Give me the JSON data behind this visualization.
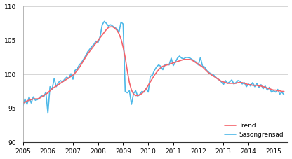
{
  "xlim": [
    2005.0,
    2015.58
  ],
  "ylim": [
    90,
    110
  ],
  "yticks": [
    90,
    95,
    100,
    105,
    110
  ],
  "xticks": [
    2005,
    2006,
    2007,
    2008,
    2009,
    2010,
    2011,
    2012,
    2013,
    2014,
    2015
  ],
  "xtick_labels": [
    "2005",
    "2006",
    "2007",
    "2008",
    "2009",
    "2010",
    "2011",
    "2012",
    "2013",
    "2014",
    "2015"
  ],
  "trend_color": "#f4626a",
  "seasonal_color": "#4db8e8",
  "legend_labels": [
    "Trend",
    "Säsongrensad"
  ],
  "background_color": "#ffffff",
  "grid_color": "#d0d0d0",
  "trend_lw": 1.2,
  "seasonal_lw": 1.2,
  "trend": [
    [
      2005.0,
      95.8
    ],
    [
      2005.083,
      95.9
    ],
    [
      2005.167,
      96.1
    ],
    [
      2005.25,
      96.2
    ],
    [
      2005.333,
      96.3
    ],
    [
      2005.417,
      96.4
    ],
    [
      2005.5,
      96.4
    ],
    [
      2005.583,
      96.4
    ],
    [
      2005.667,
      96.5
    ],
    [
      2005.75,
      96.7
    ],
    [
      2005.833,
      96.9
    ],
    [
      2005.917,
      97.1
    ],
    [
      2006.0,
      97.3
    ],
    [
      2006.083,
      97.6
    ],
    [
      2006.167,
      97.9
    ],
    [
      2006.25,
      98.1
    ],
    [
      2006.333,
      98.3
    ],
    [
      2006.417,
      98.5
    ],
    [
      2006.5,
      98.7
    ],
    [
      2006.583,
      98.9
    ],
    [
      2006.667,
      99.1
    ],
    [
      2006.75,
      99.3
    ],
    [
      2006.833,
      99.5
    ],
    [
      2006.917,
      99.7
    ],
    [
      2007.0,
      99.9
    ],
    [
      2007.083,
      100.2
    ],
    [
      2007.167,
      100.6
    ],
    [
      2007.25,
      101.0
    ],
    [
      2007.333,
      101.5
    ],
    [
      2007.417,
      102.0
    ],
    [
      2007.5,
      102.5
    ],
    [
      2007.583,
      103.0
    ],
    [
      2007.667,
      103.4
    ],
    [
      2007.75,
      103.8
    ],
    [
      2007.833,
      104.2
    ],
    [
      2007.917,
      104.6
    ],
    [
      2008.0,
      105.0
    ],
    [
      2008.083,
      105.4
    ],
    [
      2008.167,
      105.8
    ],
    [
      2008.25,
      106.2
    ],
    [
      2008.333,
      106.6
    ],
    [
      2008.417,
      106.9
    ],
    [
      2008.5,
      107.0
    ],
    [
      2008.583,
      107.0
    ],
    [
      2008.667,
      106.8
    ],
    [
      2008.75,
      106.5
    ],
    [
      2008.833,
      106.0
    ],
    [
      2008.917,
      105.2
    ],
    [
      2009.0,
      104.0
    ],
    [
      2009.083,
      102.5
    ],
    [
      2009.167,
      100.5
    ],
    [
      2009.25,
      98.8
    ],
    [
      2009.333,
      97.7
    ],
    [
      2009.417,
      97.1
    ],
    [
      2009.5,
      96.9
    ],
    [
      2009.583,
      96.9
    ],
    [
      2009.667,
      97.0
    ],
    [
      2009.75,
      97.2
    ],
    [
      2009.833,
      97.5
    ],
    [
      2009.917,
      97.9
    ],
    [
      2010.0,
      98.4
    ],
    [
      2010.083,
      98.9
    ],
    [
      2010.167,
      99.4
    ],
    [
      2010.25,
      99.9
    ],
    [
      2010.333,
      100.3
    ],
    [
      2010.417,
      100.7
    ],
    [
      2010.5,
      101.0
    ],
    [
      2010.583,
      101.2
    ],
    [
      2010.667,
      101.3
    ],
    [
      2010.75,
      101.4
    ],
    [
      2010.833,
      101.5
    ],
    [
      2010.917,
      101.6
    ],
    [
      2011.0,
      101.7
    ],
    [
      2011.083,
      101.8
    ],
    [
      2011.167,
      101.9
    ],
    [
      2011.25,
      102.0
    ],
    [
      2011.333,
      102.1
    ],
    [
      2011.417,
      102.2
    ],
    [
      2011.5,
      102.2
    ],
    [
      2011.583,
      102.2
    ],
    [
      2011.667,
      102.2
    ],
    [
      2011.75,
      102.1
    ],
    [
      2011.833,
      101.9
    ],
    [
      2011.917,
      101.7
    ],
    [
      2012.0,
      101.5
    ],
    [
      2012.083,
      101.3
    ],
    [
      2012.167,
      101.1
    ],
    [
      2012.25,
      100.8
    ],
    [
      2012.333,
      100.5
    ],
    [
      2012.417,
      100.2
    ],
    [
      2012.5,
      100.0
    ],
    [
      2012.583,
      99.8
    ],
    [
      2012.667,
      99.6
    ],
    [
      2012.75,
      99.4
    ],
    [
      2012.833,
      99.2
    ],
    [
      2012.917,
      99.0
    ],
    [
      2013.0,
      98.9
    ],
    [
      2013.083,
      98.8
    ],
    [
      2013.167,
      98.7
    ],
    [
      2013.25,
      98.7
    ],
    [
      2013.333,
      98.7
    ],
    [
      2013.417,
      98.7
    ],
    [
      2013.5,
      98.7
    ],
    [
      2013.583,
      98.8
    ],
    [
      2013.667,
      98.8
    ],
    [
      2013.75,
      98.8
    ],
    [
      2013.833,
      98.7
    ],
    [
      2013.917,
      98.6
    ],
    [
      2014.0,
      98.5
    ],
    [
      2014.083,
      98.5
    ],
    [
      2014.167,
      98.4
    ],
    [
      2014.25,
      98.4
    ],
    [
      2014.333,
      98.4
    ],
    [
      2014.417,
      98.3
    ],
    [
      2014.5,
      98.3
    ],
    [
      2014.583,
      98.2
    ],
    [
      2014.667,
      98.1
    ],
    [
      2014.75,
      98.0
    ],
    [
      2014.833,
      97.9
    ],
    [
      2014.917,
      97.8
    ],
    [
      2015.0,
      97.7
    ],
    [
      2015.083,
      97.7
    ],
    [
      2015.167,
      97.6
    ],
    [
      2015.25,
      97.6
    ],
    [
      2015.333,
      97.5
    ],
    [
      2015.417,
      97.5
    ]
  ],
  "seasonal": [
    [
      2005.0,
      95.3
    ],
    [
      2005.083,
      96.4
    ],
    [
      2005.167,
      95.6
    ],
    [
      2005.25,
      96.7
    ],
    [
      2005.333,
      95.8
    ],
    [
      2005.417,
      96.7
    ],
    [
      2005.5,
      96.2
    ],
    [
      2005.583,
      96.3
    ],
    [
      2005.667,
      96.6
    ],
    [
      2005.75,
      96.9
    ],
    [
      2005.833,
      96.7
    ],
    [
      2005.917,
      97.4
    ],
    [
      2006.0,
      94.3
    ],
    [
      2006.083,
      98.2
    ],
    [
      2006.167,
      97.8
    ],
    [
      2006.25,
      99.4
    ],
    [
      2006.333,
      98.2
    ],
    [
      2006.417,
      98.8
    ],
    [
      2006.5,
      99.1
    ],
    [
      2006.583,
      98.9
    ],
    [
      2006.667,
      99.3
    ],
    [
      2006.75,
      99.6
    ],
    [
      2006.833,
      99.4
    ],
    [
      2006.917,
      100.1
    ],
    [
      2007.0,
      99.3
    ],
    [
      2007.083,
      100.6
    ],
    [
      2007.167,
      100.8
    ],
    [
      2007.25,
      101.4
    ],
    [
      2007.333,
      101.7
    ],
    [
      2007.417,
      102.2
    ],
    [
      2007.5,
      102.7
    ],
    [
      2007.583,
      103.3
    ],
    [
      2007.667,
      103.7
    ],
    [
      2007.75,
      104.1
    ],
    [
      2007.833,
      104.4
    ],
    [
      2007.917,
      104.9
    ],
    [
      2008.0,
      104.7
    ],
    [
      2008.083,
      105.6
    ],
    [
      2008.167,
      107.3
    ],
    [
      2008.25,
      107.8
    ],
    [
      2008.333,
      107.5
    ],
    [
      2008.417,
      107.1
    ],
    [
      2008.5,
      107.3
    ],
    [
      2008.583,
      107.1
    ],
    [
      2008.667,
      106.9
    ],
    [
      2008.75,
      106.7
    ],
    [
      2008.833,
      106.2
    ],
    [
      2008.917,
      107.7
    ],
    [
      2009.0,
      107.4
    ],
    [
      2009.083,
      97.5
    ],
    [
      2009.167,
      97.3
    ],
    [
      2009.25,
      97.6
    ],
    [
      2009.333,
      95.6
    ],
    [
      2009.417,
      97.2
    ],
    [
      2009.5,
      97.6
    ],
    [
      2009.583,
      96.8
    ],
    [
      2009.667,
      97.1
    ],
    [
      2009.75,
      97.5
    ],
    [
      2009.833,
      97.4
    ],
    [
      2009.917,
      97.9
    ],
    [
      2010.0,
      97.4
    ],
    [
      2010.083,
      99.7
    ],
    [
      2010.167,
      99.9
    ],
    [
      2010.25,
      100.6
    ],
    [
      2010.333,
      101.1
    ],
    [
      2010.417,
      101.4
    ],
    [
      2010.5,
      101.2
    ],
    [
      2010.583,
      100.7
    ],
    [
      2010.667,
      101.4
    ],
    [
      2010.75,
      101.5
    ],
    [
      2010.833,
      101.4
    ],
    [
      2010.917,
      102.4
    ],
    [
      2011.0,
      101.3
    ],
    [
      2011.083,
      101.8
    ],
    [
      2011.167,
      102.4
    ],
    [
      2011.25,
      102.7
    ],
    [
      2011.333,
      102.4
    ],
    [
      2011.417,
      102.3
    ],
    [
      2011.5,
      102.5
    ],
    [
      2011.583,
      102.5
    ],
    [
      2011.667,
      102.4
    ],
    [
      2011.75,
      102.2
    ],
    [
      2011.833,
      102.0
    ],
    [
      2011.917,
      101.8
    ],
    [
      2012.0,
      101.4
    ],
    [
      2012.083,
      102.5
    ],
    [
      2012.167,
      101.2
    ],
    [
      2012.25,
      101.1
    ],
    [
      2012.333,
      100.6
    ],
    [
      2012.417,
      100.3
    ],
    [
      2012.5,
      100.1
    ],
    [
      2012.583,
      100.0
    ],
    [
      2012.667,
      99.7
    ],
    [
      2012.75,
      99.4
    ],
    [
      2012.833,
      99.2
    ],
    [
      2012.917,
      98.9
    ],
    [
      2013.0,
      98.5
    ],
    [
      2013.083,
      99.1
    ],
    [
      2013.167,
      98.7
    ],
    [
      2013.25,
      98.9
    ],
    [
      2013.333,
      99.2
    ],
    [
      2013.417,
      98.6
    ],
    [
      2013.5,
      98.8
    ],
    [
      2013.583,
      99.1
    ],
    [
      2013.667,
      99.0
    ],
    [
      2013.75,
      98.6
    ],
    [
      2013.833,
      98.8
    ],
    [
      2013.917,
      98.2
    ],
    [
      2014.0,
      98.6
    ],
    [
      2014.083,
      98.3
    ],
    [
      2014.167,
      98.8
    ],
    [
      2014.25,
      98.2
    ],
    [
      2014.333,
      98.7
    ],
    [
      2014.417,
      98.1
    ],
    [
      2014.5,
      98.5
    ],
    [
      2014.583,
      97.9
    ],
    [
      2014.667,
      98.3
    ],
    [
      2014.75,
      97.7
    ],
    [
      2014.833,
      98.1
    ],
    [
      2014.917,
      97.4
    ],
    [
      2015.0,
      97.6
    ],
    [
      2015.083,
      97.4
    ],
    [
      2015.167,
      97.8
    ],
    [
      2015.25,
      97.1
    ],
    [
      2015.333,
      97.4
    ],
    [
      2015.417,
      97.0
    ]
  ]
}
